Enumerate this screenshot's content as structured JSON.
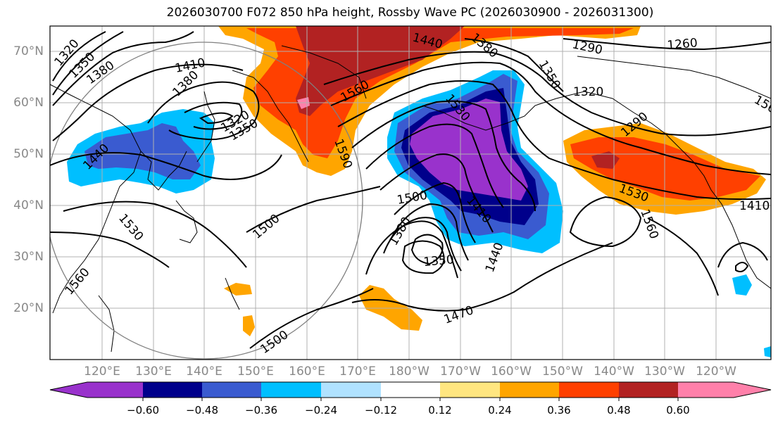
{
  "title": "2026030700 F072 850 hPa height, Rossby Wave PC (2026030900 - 2026031300)",
  "map": {
    "projection": "equirectangular",
    "extent": {
      "lon_min": 110,
      "lon_max": 251,
      "lat_min": 10,
      "lat_max": 75
    },
    "lat_labels": [
      "70°N",
      "60°N",
      "50°N",
      "40°N",
      "30°N",
      "20°N"
    ],
    "lon_labels": [
      "120°E",
      "130°E",
      "140°E",
      "150°E",
      "160°E",
      "170°E",
      "180°W",
      "170°W",
      "160°W",
      "150°W",
      "140°W",
      "130°W",
      "120°W"
    ],
    "contour_labels": [
      "1320",
      "1350",
      "1380",
      "1410",
      "1380",
      "1320",
      "1350",
      "1440",
      "1440",
      "1380",
      "1290",
      "1260",
      "1560",
      "1530",
      "1590",
      "1350",
      "1320",
      "1290",
      "1500",
      "1410",
      "1380",
      "1350",
      "1440",
      "1470",
      "1500",
      "1500",
      "1530",
      "1560",
      "1410",
      "1560",
      "1530",
      "1560"
    ],
    "grid": true
  },
  "colorbar": {
    "colors": [
      "#9932cc",
      "#00008b",
      "#3a5bd0",
      "#00bfff",
      "#b0e2ff",
      "#ffffff",
      "#ffe680",
      "#ffa500",
      "#ff4000",
      "#b22222",
      "#ff80aa"
    ],
    "ticks": [
      "−0.60",
      "−0.48",
      "−0.36",
      "−0.24",
      "−0.12",
      "0.12",
      "0.24",
      "0.36",
      "0.48",
      "0.60"
    ],
    "extend": "both"
  }
}
